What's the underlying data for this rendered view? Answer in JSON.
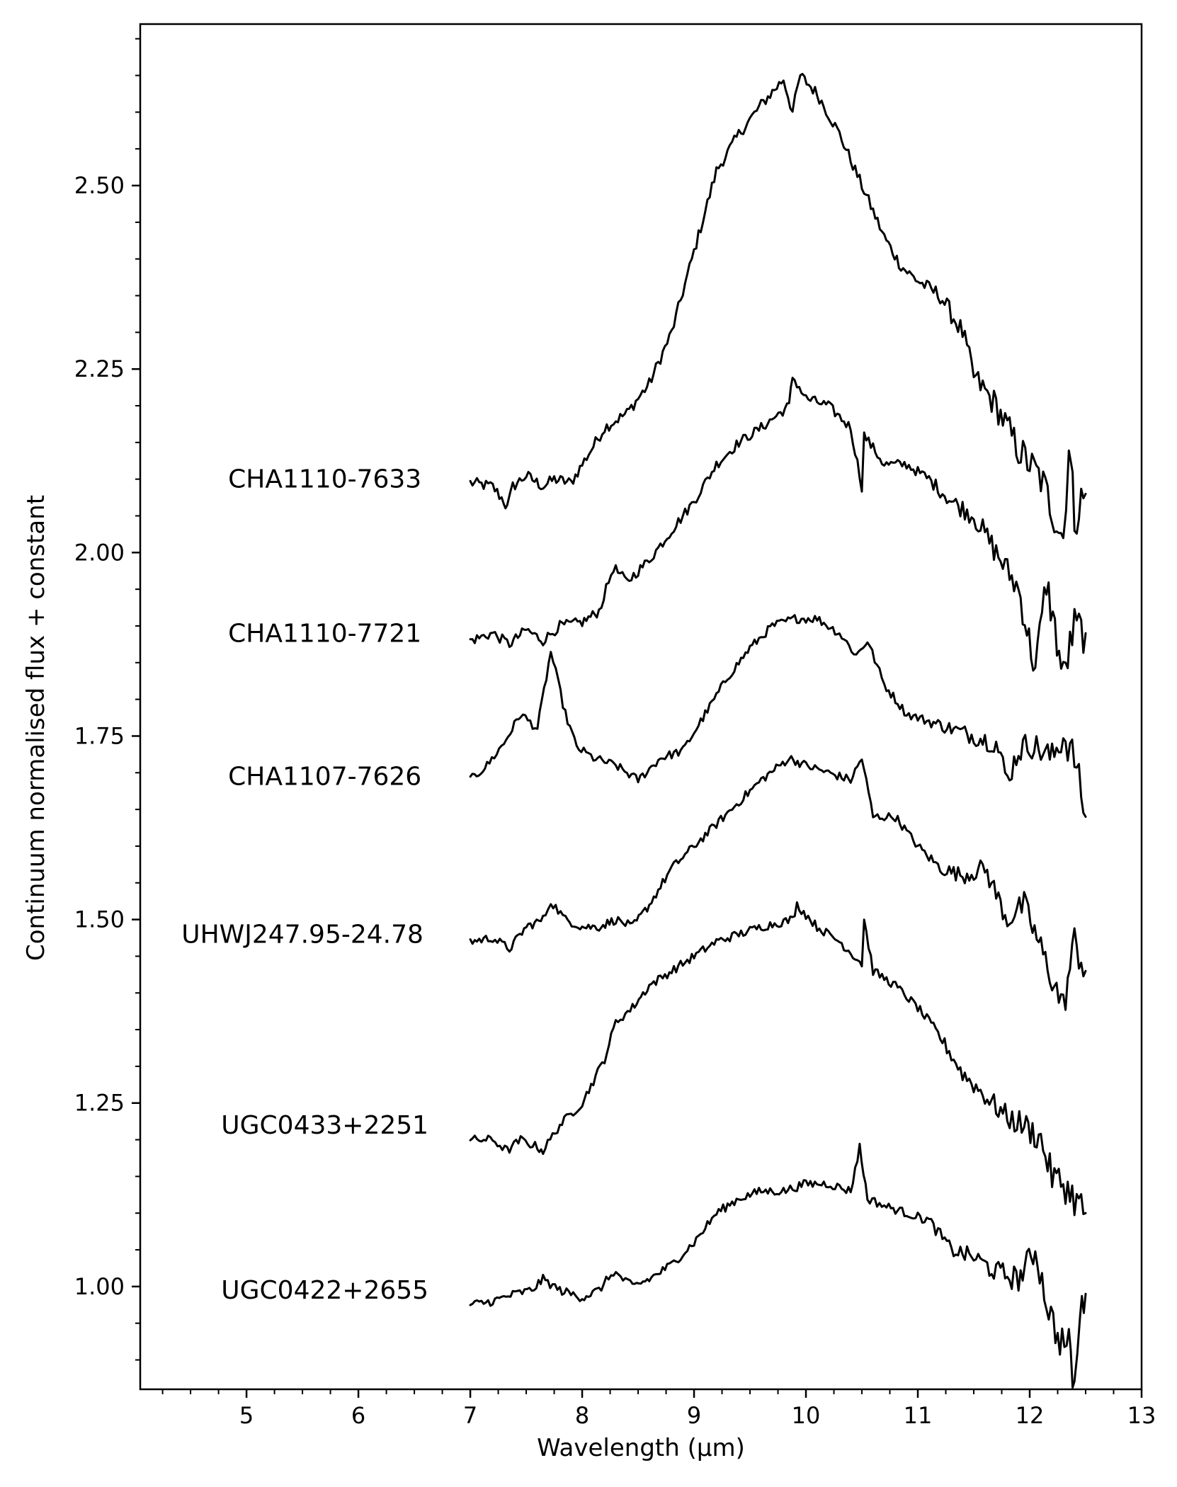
{
  "chart_data": {
    "type": "line",
    "title": "",
    "xlabel": "Wavelength (µm)",
    "ylabel": "Continuum normalised flux + constant",
    "xlim": [
      4.05,
      13.0
    ],
    "ylim": [
      0.86,
      2.72
    ],
    "xticks": [
      5,
      6,
      7,
      8,
      9,
      10,
      11,
      12,
      13
    ],
    "xtick_labels": [
      "5",
      "6",
      "7",
      "8",
      "9",
      "10",
      "11",
      "12",
      "13"
    ],
    "xminor_step": 0.25,
    "yticks": [
      1.0,
      1.25,
      1.5,
      1.75,
      2.0,
      2.25,
      2.5
    ],
    "ytick_labels": [
      "1.00",
      "1.25",
      "1.50",
      "1.75",
      "2.00",
      "2.25",
      "2.50"
    ],
    "yminor_step": 0.05,
    "grid": false,
    "legend": "none",
    "line_color": "#000000",
    "series": [
      {
        "label": "CHA1110-7633",
        "label_anchor": {
          "x": 5.7,
          "y": 2.1
        },
        "noise": 0.008,
        "points": [
          [
            7.0,
            2.095
          ],
          [
            7.2,
            2.09
          ],
          [
            7.3,
            2.07
          ],
          [
            7.33,
            2.06
          ],
          [
            7.38,
            2.09
          ],
          [
            7.5,
            2.105
          ],
          [
            7.65,
            2.09
          ],
          [
            7.75,
            2.1
          ],
          [
            7.9,
            2.095
          ],
          [
            8.0,
            2.12
          ],
          [
            8.2,
            2.17
          ],
          [
            8.4,
            2.19
          ],
          [
            8.6,
            2.23
          ],
          [
            8.8,
            2.3
          ],
          [
            9.0,
            2.41
          ],
          [
            9.2,
            2.52
          ],
          [
            9.4,
            2.57
          ],
          [
            9.6,
            2.61
          ],
          [
            9.8,
            2.645
          ],
          [
            9.88,
            2.6
          ],
          [
            9.95,
            2.65
          ],
          [
            10.1,
            2.625
          ],
          [
            10.3,
            2.57
          ],
          [
            10.5,
            2.5
          ],
          [
            10.7,
            2.43
          ],
          [
            10.85,
            2.39
          ],
          [
            11.0,
            2.37
          ],
          [
            11.2,
            2.35
          ],
          [
            11.4,
            2.3
          ],
          [
            11.5,
            2.24
          ],
          [
            11.7,
            2.2
          ],
          [
            11.9,
            2.14
          ],
          [
            12.1,
            2.1
          ],
          [
            12.3,
            2.02
          ],
          [
            12.35,
            2.15
          ],
          [
            12.4,
            2.05
          ],
          [
            12.5,
            2.08
          ]
        ]
      },
      {
        "label": "CHA1110-7721",
        "label_anchor": {
          "x": 5.7,
          "y": 1.89
        },
        "noise": 0.007,
        "points": [
          [
            7.0,
            1.88
          ],
          [
            7.2,
            1.89
          ],
          [
            7.35,
            1.875
          ],
          [
            7.5,
            1.895
          ],
          [
            7.65,
            1.88
          ],
          [
            7.8,
            1.9
          ],
          [
            8.0,
            1.905
          ],
          [
            8.15,
            1.92
          ],
          [
            8.28,
            1.98
          ],
          [
            8.4,
            1.96
          ],
          [
            8.6,
            1.99
          ],
          [
            8.8,
            2.03
          ],
          [
            9.0,
            2.07
          ],
          [
            9.2,
            2.12
          ],
          [
            9.4,
            2.15
          ],
          [
            9.6,
            2.17
          ],
          [
            9.85,
            2.2
          ],
          [
            9.88,
            2.24
          ],
          [
            10.0,
            2.21
          ],
          [
            10.2,
            2.2
          ],
          [
            10.4,
            2.17
          ],
          [
            10.5,
            2.09
          ],
          [
            10.52,
            2.16
          ],
          [
            10.7,
            2.12
          ],
          [
            10.9,
            2.12
          ],
          [
            11.1,
            2.1
          ],
          [
            11.3,
            2.07
          ],
          [
            11.5,
            2.05
          ],
          [
            11.7,
            2.0
          ],
          [
            11.9,
            1.95
          ],
          [
            12.05,
            1.84
          ],
          [
            12.15,
            1.96
          ],
          [
            12.3,
            1.83
          ],
          [
            12.4,
            1.9
          ],
          [
            12.5,
            1.89
          ]
        ]
      },
      {
        "label": "CHA1107-7626",
        "label_anchor": {
          "x": 5.7,
          "y": 1.695
        },
        "noise": 0.006,
        "points": [
          [
            7.0,
            1.69
          ],
          [
            7.15,
            1.71
          ],
          [
            7.3,
            1.74
          ],
          [
            7.45,
            1.78
          ],
          [
            7.6,
            1.76
          ],
          [
            7.72,
            1.865
          ],
          [
            7.85,
            1.78
          ],
          [
            7.95,
            1.735
          ],
          [
            8.1,
            1.72
          ],
          [
            8.3,
            1.71
          ],
          [
            8.5,
            1.69
          ],
          [
            8.7,
            1.72
          ],
          [
            8.9,
            1.73
          ],
          [
            9.1,
            1.78
          ],
          [
            9.3,
            1.83
          ],
          [
            9.5,
            1.87
          ],
          [
            9.7,
            1.9
          ],
          [
            9.9,
            1.91
          ],
          [
            10.1,
            1.91
          ],
          [
            10.3,
            1.89
          ],
          [
            10.45,
            1.86
          ],
          [
            10.55,
            1.88
          ],
          [
            10.7,
            1.82
          ],
          [
            10.9,
            1.78
          ],
          [
            11.1,
            1.77
          ],
          [
            11.3,
            1.76
          ],
          [
            11.5,
            1.75
          ],
          [
            11.7,
            1.74
          ],
          [
            11.8,
            1.69
          ],
          [
            11.9,
            1.73
          ],
          [
            12.0,
            1.74
          ],
          [
            12.2,
            1.72
          ],
          [
            12.3,
            1.75
          ],
          [
            12.4,
            1.72
          ],
          [
            12.5,
            1.64
          ]
        ]
      },
      {
        "label": "UHWJ247.95-24.78",
        "label_anchor": {
          "x": 5.5,
          "y": 1.48
        },
        "noise": 0.006,
        "points": [
          [
            7.0,
            1.47
          ],
          [
            7.2,
            1.475
          ],
          [
            7.35,
            1.46
          ],
          [
            7.5,
            1.49
          ],
          [
            7.65,
            1.5
          ],
          [
            7.72,
            1.525
          ],
          [
            7.85,
            1.5
          ],
          [
            8.0,
            1.49
          ],
          [
            8.15,
            1.49
          ],
          [
            8.3,
            1.5
          ],
          [
            8.45,
            1.49
          ],
          [
            8.6,
            1.52
          ],
          [
            8.8,
            1.57
          ],
          [
            9.0,
            1.6
          ],
          [
            9.2,
            1.63
          ],
          [
            9.4,
            1.66
          ],
          [
            9.6,
            1.69
          ],
          [
            9.85,
            1.72
          ],
          [
            10.0,
            1.71
          ],
          [
            10.2,
            1.7
          ],
          [
            10.4,
            1.69
          ],
          [
            10.5,
            1.72
          ],
          [
            10.6,
            1.64
          ],
          [
            10.8,
            1.64
          ],
          [
            11.0,
            1.6
          ],
          [
            11.2,
            1.57
          ],
          [
            11.4,
            1.56
          ],
          [
            11.6,
            1.57
          ],
          [
            11.8,
            1.5
          ],
          [
            11.95,
            1.52
          ],
          [
            12.1,
            1.46
          ],
          [
            12.3,
            1.38
          ],
          [
            12.4,
            1.47
          ],
          [
            12.5,
            1.43
          ]
        ]
      },
      {
        "label": "UGC0433+2251",
        "label_anchor": {
          "x": 5.7,
          "y": 1.22
        },
        "noise": 0.006,
        "points": [
          [
            7.0,
            1.2
          ],
          [
            7.2,
            1.2
          ],
          [
            7.33,
            1.185
          ],
          [
            7.45,
            1.2
          ],
          [
            7.6,
            1.19
          ],
          [
            7.65,
            1.185
          ],
          [
            7.8,
            1.22
          ],
          [
            8.0,
            1.25
          ],
          [
            8.2,
            1.31
          ],
          [
            8.3,
            1.36
          ],
          [
            8.45,
            1.38
          ],
          [
            8.6,
            1.41
          ],
          [
            8.8,
            1.43
          ],
          [
            9.0,
            1.45
          ],
          [
            9.2,
            1.47
          ],
          [
            9.4,
            1.48
          ],
          [
            9.6,
            1.49
          ],
          [
            9.88,
            1.5
          ],
          [
            9.92,
            1.52
          ],
          [
            10.1,
            1.49
          ],
          [
            10.3,
            1.47
          ],
          [
            10.5,
            1.44
          ],
          [
            10.52,
            1.5
          ],
          [
            10.6,
            1.43
          ],
          [
            10.8,
            1.41
          ],
          [
            11.0,
            1.38
          ],
          [
            11.2,
            1.34
          ],
          [
            11.4,
            1.29
          ],
          [
            11.6,
            1.26
          ],
          [
            11.8,
            1.23
          ],
          [
            11.95,
            1.22
          ],
          [
            12.1,
            1.2
          ],
          [
            12.2,
            1.15
          ],
          [
            12.3,
            1.14
          ],
          [
            12.4,
            1.12
          ],
          [
            12.5,
            1.1
          ]
        ]
      },
      {
        "label": "UGC0422+2655",
        "label_anchor": {
          "x": 5.7,
          "y": 0.995
        },
        "noise": 0.006,
        "points": [
          [
            7.0,
            0.975
          ],
          [
            7.2,
            0.98
          ],
          [
            7.4,
            0.99
          ],
          [
            7.55,
            0.995
          ],
          [
            7.65,
            1.01
          ],
          [
            7.8,
            0.995
          ],
          [
            8.0,
            0.985
          ],
          [
            8.15,
            0.995
          ],
          [
            8.28,
            1.02
          ],
          [
            8.45,
            1.0
          ],
          [
            8.6,
            1.01
          ],
          [
            8.8,
            1.03
          ],
          [
            9.0,
            1.06
          ],
          [
            9.2,
            1.1
          ],
          [
            9.4,
            1.12
          ],
          [
            9.6,
            1.13
          ],
          [
            9.8,
            1.13
          ],
          [
            10.0,
            1.14
          ],
          [
            10.2,
            1.14
          ],
          [
            10.4,
            1.13
          ],
          [
            10.48,
            1.19
          ],
          [
            10.55,
            1.12
          ],
          [
            10.7,
            1.11
          ],
          [
            10.9,
            1.1
          ],
          [
            11.1,
            1.09
          ],
          [
            11.3,
            1.05
          ],
          [
            11.5,
            1.04
          ],
          [
            11.7,
            1.02
          ],
          [
            11.9,
            1.01
          ],
          [
            12.05,
            1.05
          ],
          [
            12.15,
            0.98
          ],
          [
            12.25,
            0.93
          ],
          [
            12.35,
            0.92
          ],
          [
            12.4,
            0.86
          ],
          [
            12.45,
            0.96
          ],
          [
            12.5,
            0.99
          ]
        ]
      }
    ]
  }
}
